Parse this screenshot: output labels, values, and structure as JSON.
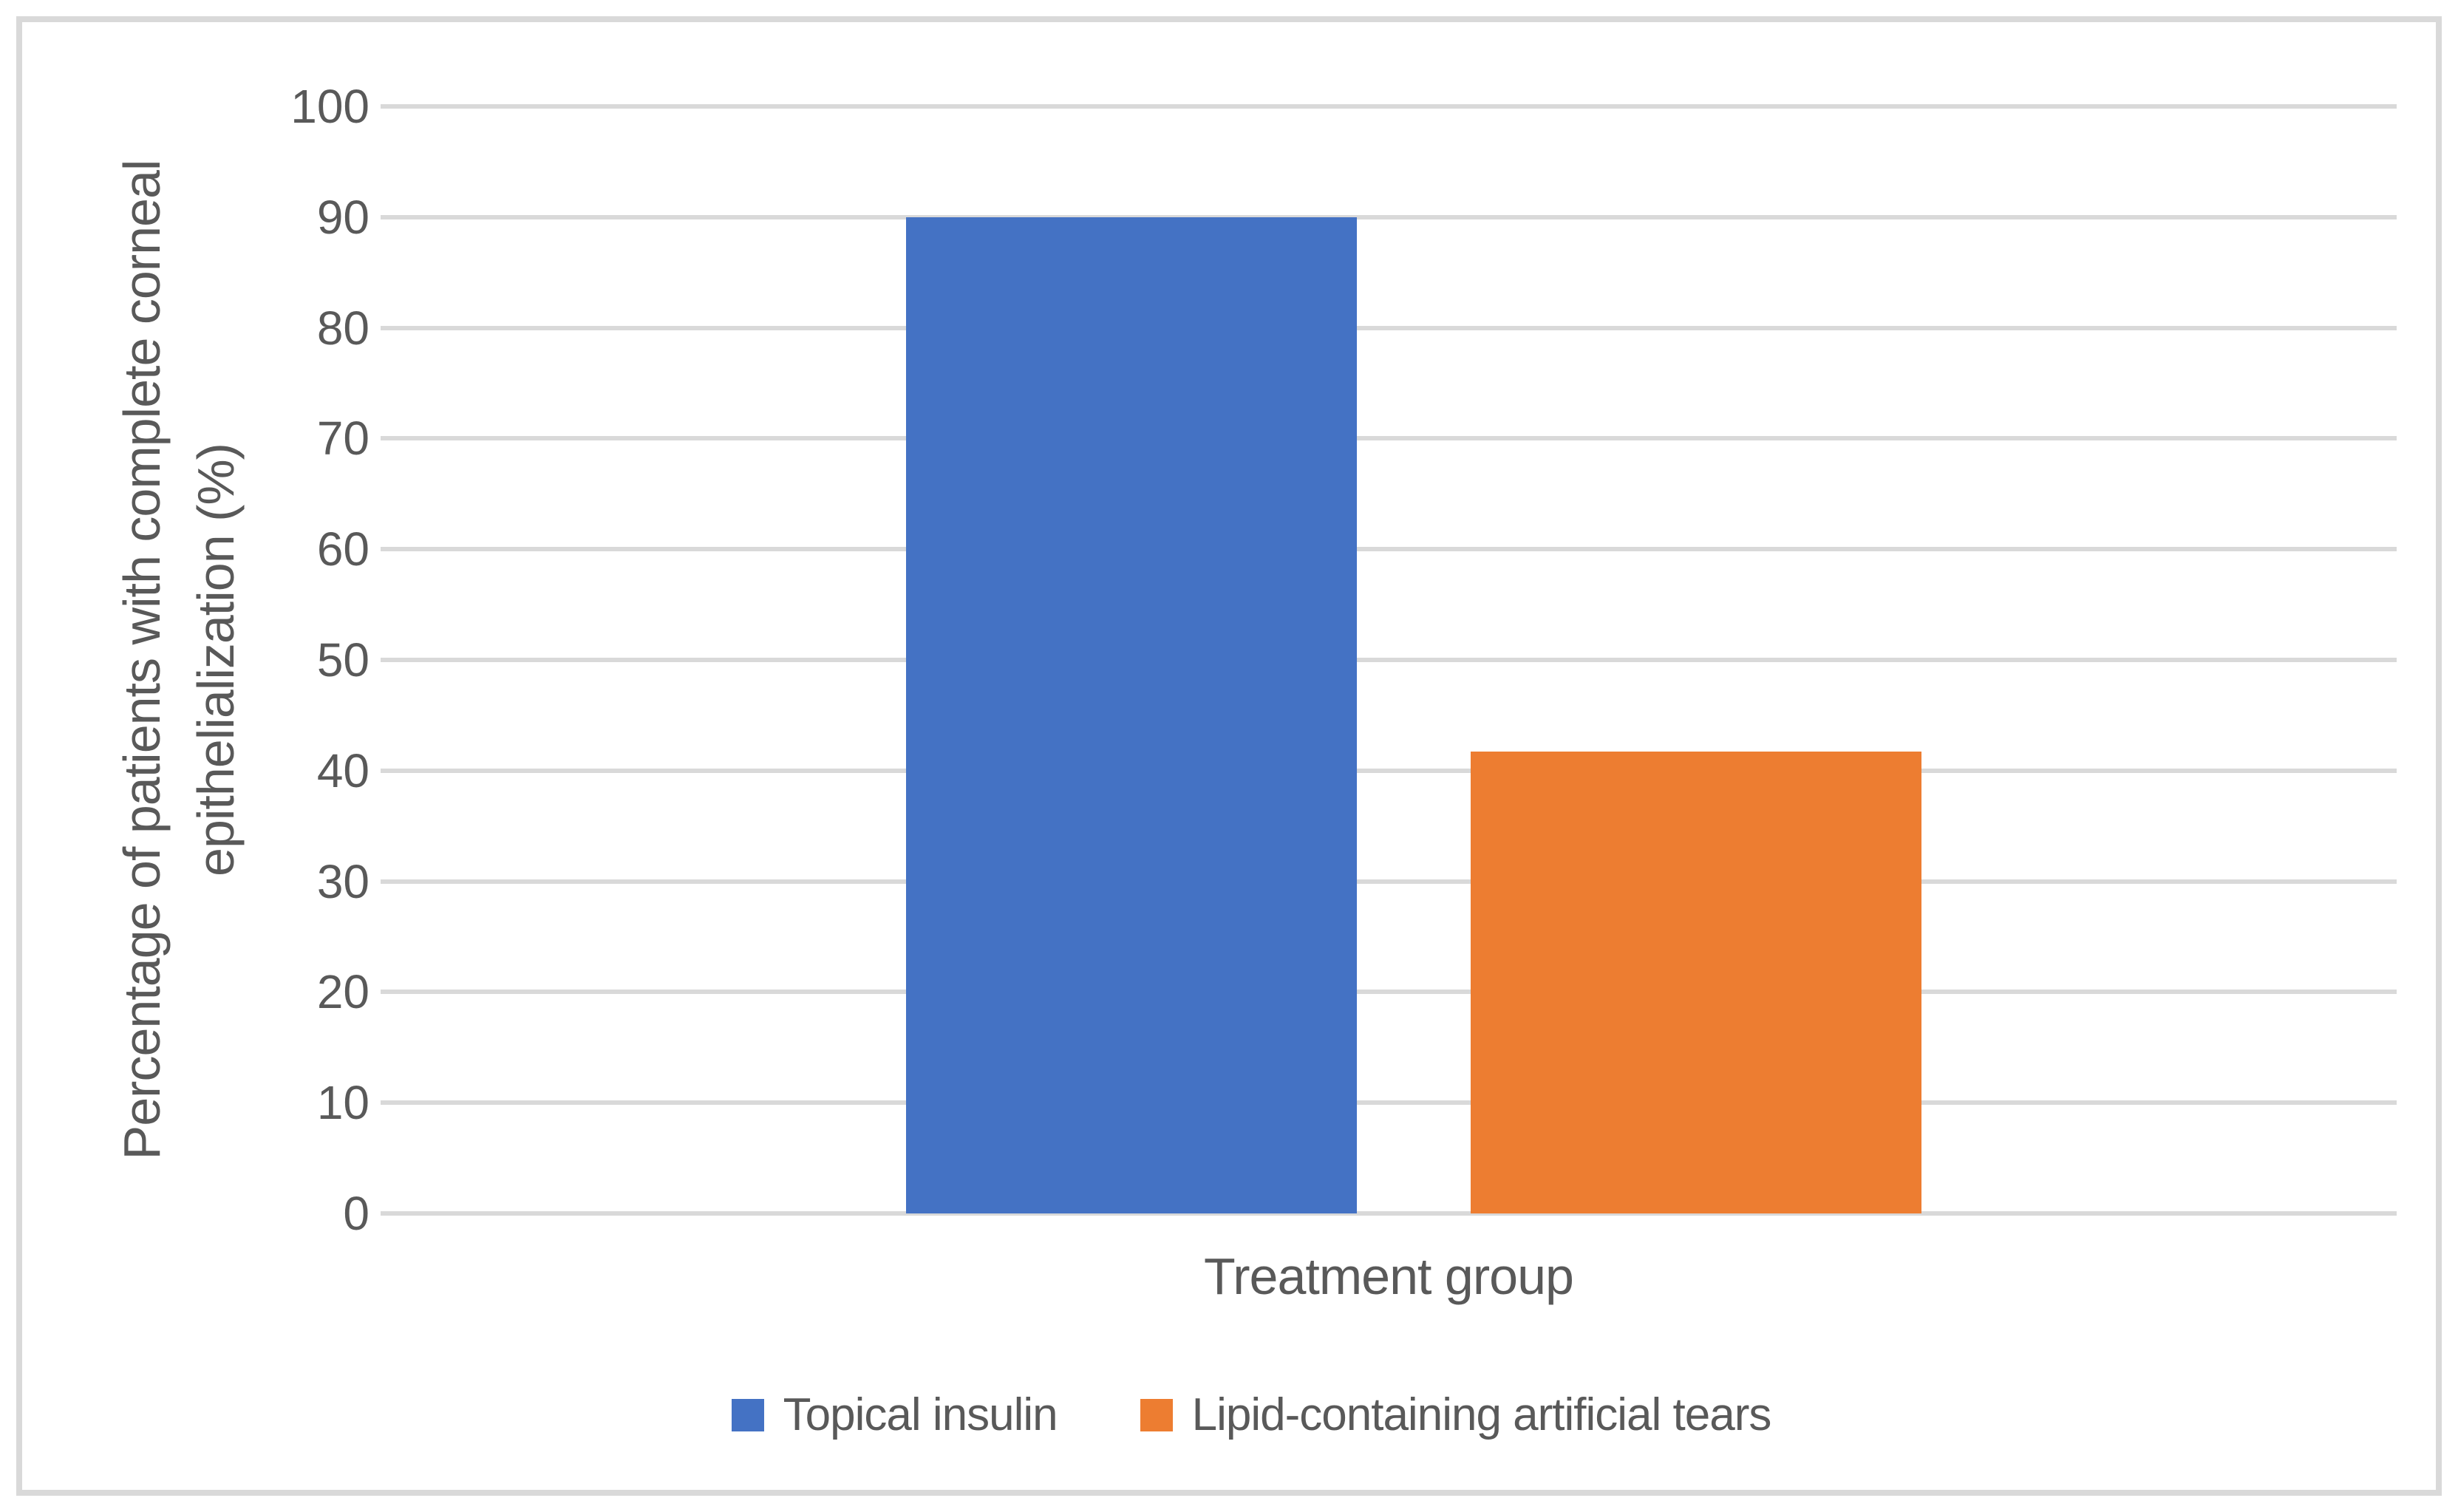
{
  "figure": {
    "background": "#FFFFFF",
    "border_color": "#D9D9D9"
  },
  "chart_data": {
    "type": "bar",
    "categories": [
      "Treatment group"
    ],
    "series": [
      {
        "name": "Topical insulin",
        "values": [
          90
        ],
        "color": "#4472C4"
      },
      {
        "name": "Lipid-containing artificial tears",
        "values": [
          41.7
        ],
        "color": "#ED7D31"
      }
    ],
    "title": "",
    "xlabel": "Treatment group",
    "ylabel": "Percentage of patients with complete corneal epithelialization (%)",
    "ylabel_lines": [
      "Percentage of patients with complete corneal",
      "epithelialization (%)"
    ],
    "ylim": [
      0,
      100
    ],
    "yticks": [
      100,
      90,
      80,
      70,
      60,
      50,
      40,
      30,
      20,
      10,
      0
    ],
    "grid": "horizontal",
    "gridline_color": "#D9D9D9",
    "legend_position": "bottom",
    "text_color": "#595959"
  }
}
